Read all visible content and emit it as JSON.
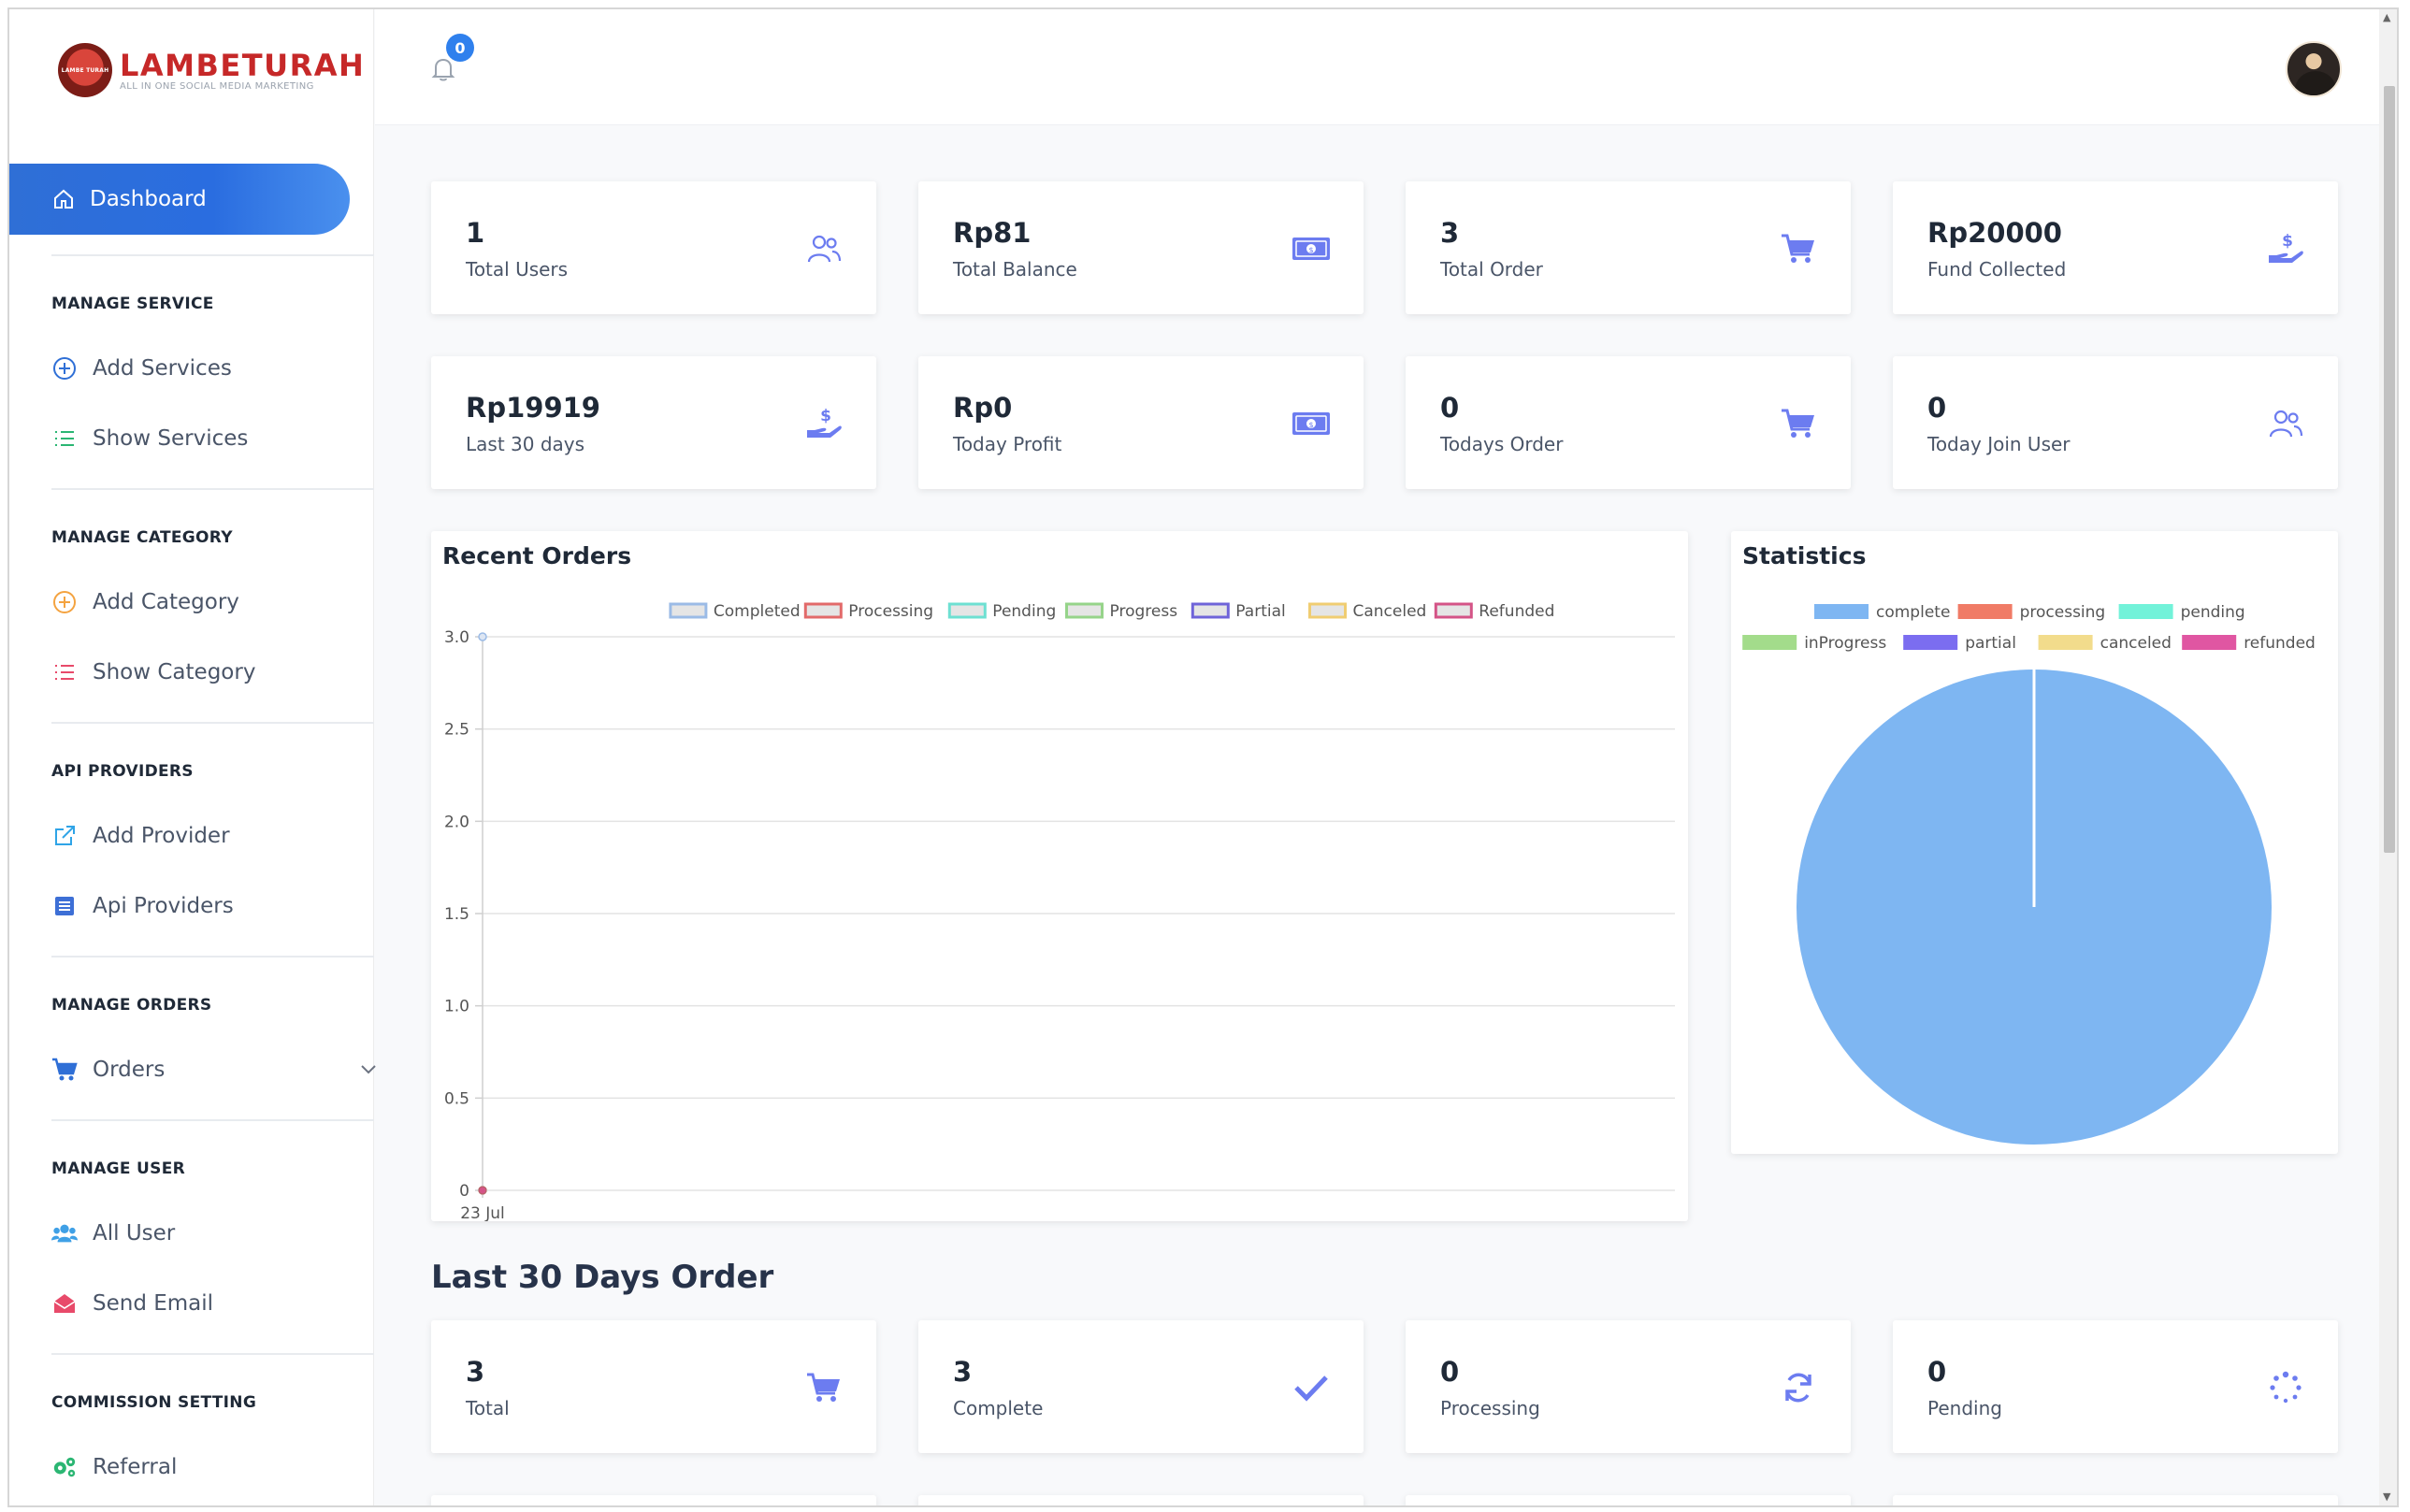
{
  "brand": {
    "name": "LAMBETURAH",
    "tagline": "ALL IN ONE SOCIAL MEDIA MARKETING",
    "mark_text": "LAMBE TURAH"
  },
  "topbar": {
    "notification_count": "0"
  },
  "sidebar": {
    "active": {
      "label": "Dashboard",
      "icon": "home-icon"
    },
    "sections": [
      {
        "title": "MANAGE SERVICE",
        "items": [
          {
            "label": "Add Services",
            "icon": "plus-circle-icon",
            "color": "#2f6fd6"
          },
          {
            "label": "Show Services",
            "icon": "list-icon",
            "color": "#2bb673"
          }
        ]
      },
      {
        "title": "MANAGE CATEGORY",
        "items": [
          {
            "label": "Add Category",
            "icon": "plus-circle-icon",
            "color": "#f4a340"
          },
          {
            "label": "Show Category",
            "icon": "list-icon",
            "color": "#e84a6a"
          }
        ]
      },
      {
        "title": "API PROVIDERS",
        "items": [
          {
            "label": "Add Provider",
            "icon": "external-link-icon",
            "color": "#2fa4e7"
          },
          {
            "label": "Api Providers",
            "icon": "list-box-icon",
            "color": "#3d6fd6"
          }
        ]
      },
      {
        "title": "MANAGE ORDERS",
        "items": [
          {
            "label": "Orders",
            "icon": "cart-icon",
            "color": "#2f6fd6"
          }
        ]
      },
      {
        "title": "MANAGE USER",
        "items": [
          {
            "label": "All User",
            "icon": "users-icon",
            "color": "#3fa0e6"
          },
          {
            "label": "Send Email",
            "icon": "envelope-icon",
            "color": "#e84a6a"
          }
        ]
      },
      {
        "title": "COMMISSION SETTING",
        "items": [
          {
            "label": "Referral",
            "icon": "gears-icon",
            "color": "#2bb673"
          }
        ]
      }
    ]
  },
  "stats_top": [
    {
      "value": "1",
      "label": "Total Users",
      "icon": "users-icon"
    },
    {
      "value": "Rp81",
      "label": "Total Balance",
      "icon": "money-icon"
    },
    {
      "value": "3",
      "label": "Total Order",
      "icon": "cart-icon"
    },
    {
      "value": "Rp20000",
      "label": "Fund Collected",
      "icon": "hand-dollar-icon"
    },
    {
      "value": "Rp19919",
      "label": "Last 30 days",
      "icon": "hand-dollar-icon"
    },
    {
      "value": "Rp0",
      "label": "Today Profit",
      "icon": "money-icon"
    },
    {
      "value": "0",
      "label": "Todays Order",
      "icon": "cart-icon"
    },
    {
      "value": "0",
      "label": "Today Join User",
      "icon": "users-icon"
    }
  ],
  "recent_orders_title": "Recent Orders",
  "statistics_title": "Statistics",
  "last30_title": "Last 30 Days Order",
  "stats_bottom": [
    {
      "value": "3",
      "label": "Total",
      "icon": "cart-icon"
    },
    {
      "value": "3",
      "label": "Complete",
      "icon": "check-icon"
    },
    {
      "value": "0",
      "label": "Processing",
      "icon": "refresh-icon"
    },
    {
      "value": "0",
      "label": "Pending",
      "icon": "spinner-icon"
    }
  ],
  "chart_data": [
    {
      "type": "line",
      "title": "Recent Orders",
      "x": [
        "23 Jul"
      ],
      "ylim": [
        0,
        3
      ],
      "yticks": [
        "3.0",
        "2.5",
        "2.0",
        "1.5",
        "1.0",
        "0.5",
        "0"
      ],
      "grid": true,
      "legend": "top",
      "series": [
        {
          "name": "Completed",
          "values": [
            0
          ],
          "color": "#9bbbe6"
        },
        {
          "name": "Processing",
          "values": [
            0
          ],
          "color": "#e26a6a"
        },
        {
          "name": "Pending",
          "values": [
            0
          ],
          "color": "#6ee0d2"
        },
        {
          "name": "Progress",
          "values": [
            0
          ],
          "color": "#96d48a"
        },
        {
          "name": "Partial",
          "values": [
            0
          ],
          "color": "#6f64d9"
        },
        {
          "name": "Canceled",
          "values": [
            0
          ],
          "color": "#f0cd72"
        },
        {
          "name": "Refunded",
          "values": [
            0
          ],
          "color": "#d45487"
        }
      ]
    },
    {
      "type": "pie",
      "title": "Statistics",
      "legend": "top",
      "categories": [
        "complete",
        "processing",
        "pending",
        "inProgress",
        "partial",
        "canceled",
        "refunded"
      ],
      "values": [
        3,
        0,
        0,
        0,
        0,
        0,
        0
      ],
      "colors": [
        "#7eb6f2",
        "#f07b66",
        "#72f2d9",
        "#a3dc8b",
        "#7b6df0",
        "#f2dc8c",
        "#e056a2"
      ]
    }
  ]
}
